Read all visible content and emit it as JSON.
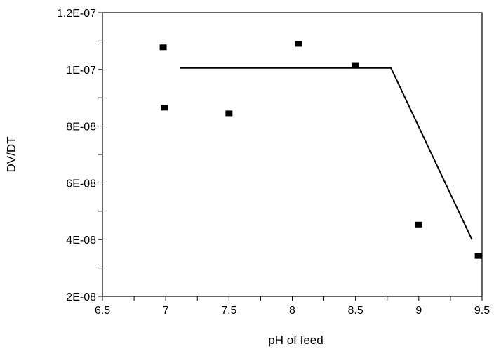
{
  "chart_data": {
    "type": "scatter",
    "title": "",
    "xlabel": "pH of feed",
    "ylabel": "DV/DT",
    "xlim": [
      6.5,
      9.5
    ],
    "ylim": [
      2e-08,
      1.2e-07
    ],
    "x_ticks": [
      6.5,
      7,
      7.5,
      8,
      8.5,
      9,
      9.5
    ],
    "x_tick_labels": [
      "6.5",
      "7",
      "7.5",
      "8",
      "8.5",
      "9",
      "9.5"
    ],
    "y_ticks": [
      2e-08,
      4e-08,
      6e-08,
      8e-08,
      1e-07,
      1.2e-07
    ],
    "y_tick_labels": [
      "2E-08",
      "4E-08",
      "6E-08",
      "8E-08",
      "1E-07",
      "1.2E-07"
    ],
    "grid": false,
    "legend": "none",
    "series": [
      {
        "type": "scatter",
        "marker": "square",
        "color": "#000000",
        "points": [
          {
            "x": 6.98,
            "y": 1.078e-07
          },
          {
            "x": 6.99,
            "y": 8.65e-08
          },
          {
            "x": 7.5,
            "y": 8.45e-08
          },
          {
            "x": 8.05,
            "y": 1.09e-07
          },
          {
            "x": 8.5,
            "y": 1.013e-07
          },
          {
            "x": 9.0,
            "y": 4.53e-08
          },
          {
            "x": 9.47,
            "y": 3.42e-08
          }
        ]
      },
      {
        "type": "line",
        "color": "#000000",
        "points": [
          {
            "x": 7.11,
            "y": 1.005e-07
          },
          {
            "x": 8.78,
            "y": 1.005e-07
          },
          {
            "x": 9.42,
            "y": 4e-08
          }
        ]
      }
    ]
  }
}
